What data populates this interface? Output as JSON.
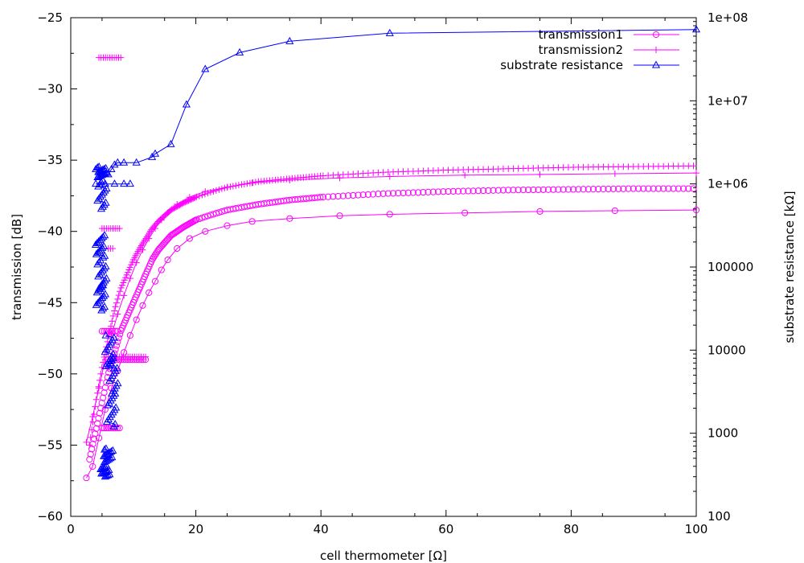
{
  "chart_data": {
    "type": "scatter",
    "title": "",
    "xlabel": "cell thermometer [Ω]",
    "ylabel": "transmission [dB]",
    "y2label": "substrate resistance [kΩ]",
    "xlim": [
      0,
      100
    ],
    "ylim": [
      -60,
      -25
    ],
    "y2lim": [
      100,
      100000000
    ],
    "y2scale": "log",
    "grid": false,
    "legend_position": "top-right",
    "x_ticks": [
      "0",
      "20",
      "40",
      "60",
      "80",
      "100"
    ],
    "y_ticks": [
      "-25",
      "-30",
      "-35",
      "-40",
      "-45",
      "-50",
      "-55",
      "-60"
    ],
    "y2_ticks": [
      "1e+08",
      "1e+07",
      "1e+06",
      "100000",
      "10000",
      "1000",
      "100"
    ],
    "series": [
      {
        "name": "transmission1",
        "axis": "left",
        "color": "#ff00ff",
        "marker": "circle",
        "sparse_line": {
          "x": [
            2.5,
            3.5,
            4.5,
            5.5,
            6.5,
            7.5,
            8.5,
            9.5,
            10.5,
            11.5,
            12.5,
            13.5,
            14.5,
            15.5,
            17,
            19,
            21.5,
            25,
            29,
            35,
            43,
            51,
            63,
            75,
            87,
            100
          ],
          "y": [
            -57.3,
            -56.5,
            -54.5,
            -52.5,
            -51,
            -49.8,
            -48.5,
            -47.3,
            -46.2,
            -45.2,
            -44.3,
            -43.5,
            -42.7,
            -42,
            -41.2,
            -40.5,
            -40,
            -39.6,
            -39.3,
            -39.1,
            -38.9,
            -38.8,
            -38.7,
            -38.6,
            -38.55,
            -38.5
          ]
        },
        "dense_band": {
          "x": [
            3,
            4,
            5,
            6,
            7,
            8,
            9,
            10,
            11,
            12,
            13,
            14,
            15,
            16,
            18,
            20,
            22,
            25,
            30,
            35,
            40,
            50,
            60,
            70,
            80,
            90,
            100
          ],
          "y": [
            -56,
            -54,
            -52,
            -50,
            -48.5,
            -47,
            -46,
            -45,
            -44,
            -43,
            -42,
            -41.3,
            -40.8,
            -40.3,
            -39.7,
            -39.2,
            -38.9,
            -38.5,
            -38.1,
            -37.8,
            -37.6,
            -37.35,
            -37.2,
            -37.1,
            -37.05,
            -37,
            -37
          ]
        },
        "clusters": [
          {
            "x": [
              6,
              12
            ],
            "y": -49
          },
          {
            "x": [
              5,
              7.5
            ],
            "y": -47
          },
          {
            "x": [
              5,
              8
            ],
            "y": -53.8
          }
        ]
      },
      {
        "name": "transmission2",
        "axis": "left",
        "color": "#ff00ff",
        "marker": "plus",
        "sparse_line": {
          "x": [
            2.5,
            3.5,
            4.5,
            5.5,
            6.5,
            7.5,
            8.5,
            9.5,
            10.5,
            11.5,
            12.5,
            13.5,
            14.5,
            15.5,
            17,
            19,
            21.5,
            25,
            29,
            35,
            43,
            51,
            63,
            75,
            87,
            100
          ],
          "y": [
            -54.8,
            -53,
            -51,
            -49,
            -47.3,
            -45.8,
            -44.5,
            -43.3,
            -42.2,
            -41.3,
            -40.5,
            -39.8,
            -39.2,
            -38.7,
            -38.1,
            -37.6,
            -37.2,
            -36.9,
            -36.6,
            -36.4,
            -36.25,
            -36.15,
            -36.05,
            -36,
            -35.95,
            -35.9
          ]
        },
        "dense_band": {
          "x": [
            3,
            4,
            5,
            6,
            7,
            8,
            9,
            10,
            11,
            12,
            13,
            14,
            15,
            16,
            18,
            20,
            22,
            25,
            30,
            35,
            40,
            50,
            60,
            70,
            80,
            90,
            100
          ],
          "y": [
            -55,
            -52,
            -49.5,
            -47.5,
            -45.5,
            -44,
            -43,
            -42,
            -41.2,
            -40.5,
            -39.8,
            -39.3,
            -38.9,
            -38.5,
            -38,
            -37.6,
            -37.3,
            -36.9,
            -36.5,
            -36.3,
            -36.1,
            -35.85,
            -35.7,
            -35.6,
            -35.5,
            -35.45,
            -35.4
          ]
        },
        "clusters": [
          {
            "x": [
              4.5,
              8
            ],
            "y": -27.8
          },
          {
            "x": [
              5,
              8
            ],
            "y": -39.8
          },
          {
            "x": [
              6,
              12
            ],
            "y": -48.8
          },
          {
            "x": [
              6,
              7
            ],
            "y": -41.2
          }
        ]
      },
      {
        "name": "substrate resistance",
        "axis": "right",
        "color": "#0000ff",
        "marker": "triangle",
        "line": {
          "x": [
            4,
            5,
            6,
            6.5,
            7,
            7.5,
            8.5,
            10.5,
            13,
            13.5,
            16,
            18.5,
            21.5,
            27,
            35,
            51,
            100
          ],
          "y": [
            1500000,
            1300000,
            1300000,
            1500000,
            1700000,
            1800000,
            1800000,
            1800000,
            2100000,
            2300000,
            3000000,
            9000000,
            24000000,
            38000000,
            52000000,
            65000000,
            72000000
          ]
        },
        "tail": {
          "x": [
            4,
            5.5,
            7,
            8.5,
            9.5
          ],
          "y": [
            1000000,
            1000000,
            1000000,
            1000000,
            1000000
          ]
        },
        "clusters": [
          {
            "x": 5,
            "ymin": 1200000,
            "ymax": 1600000
          },
          {
            "x": 5,
            "ymin": 500000,
            "ymax": 1100000
          },
          {
            "x": 4.7,
            "ymin": 130000,
            "ymax": 240000
          },
          {
            "x": 5,
            "ymin": 55000,
            "ymax": 120000
          },
          {
            "x": 4.8,
            "ymin": 30000,
            "ymax": 60000
          },
          {
            "x": 6.2,
            "ymin": 6000,
            "ymax": 15000
          },
          {
            "x": 6.8,
            "ymin": 3000,
            "ymax": 8000
          },
          {
            "x": 6.5,
            "ymin": 1200,
            "ymax": 3000
          },
          {
            "x": 6,
            "ymin": 450,
            "ymax": 650
          },
          {
            "x": 5.5,
            "ymin": 300,
            "ymax": 400
          }
        ]
      }
    ]
  }
}
